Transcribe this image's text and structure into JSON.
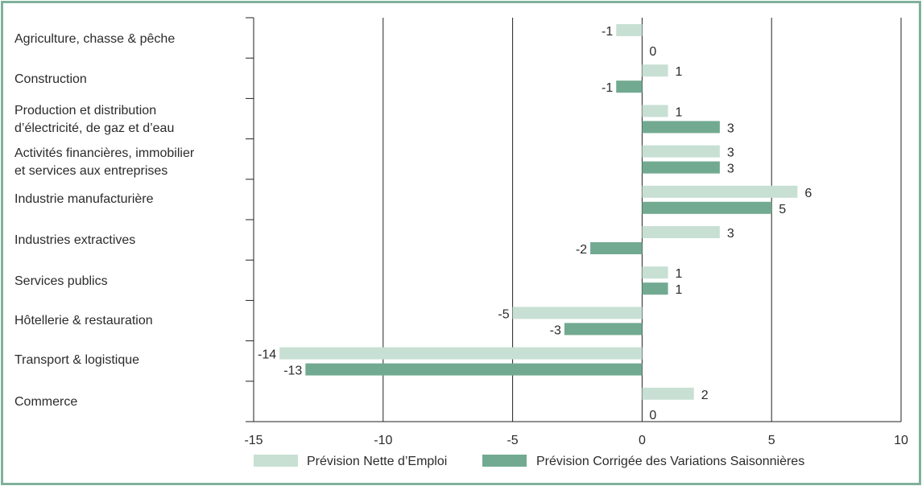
{
  "chart_data": {
    "type": "bar",
    "orientation": "horizontal",
    "categories": [
      "Agriculture, chasse & pêche",
      "Construction",
      "Production et distribution\nd’électricité, de gaz et d’eau",
      "Activités financières, immobilier\net services aux entreprises",
      "Industrie manufacturière",
      "Industries extractives",
      "Services publics",
      "Hôtellerie & restauration",
      "Transport & logistique",
      "Commerce"
    ],
    "series": [
      {
        "name": "Prévision Nette d’Emploi",
        "color": "#c8e0d4",
        "values": [
          -1,
          1,
          1,
          3,
          6,
          3,
          1,
          -5,
          -14,
          2
        ]
      },
      {
        "name": "Prévision Corrigée des Variations Saisonnières",
        "color": "#72aa91",
        "values": [
          0,
          -1,
          3,
          3,
          5,
          -2,
          1,
          -3,
          -13,
          0
        ]
      }
    ],
    "xlim": [
      -15,
      10
    ],
    "xticks": [
      "-15",
      "-10",
      "-5",
      "0",
      "5",
      "10"
    ],
    "grid": true,
    "legend_position": "bottom"
  }
}
